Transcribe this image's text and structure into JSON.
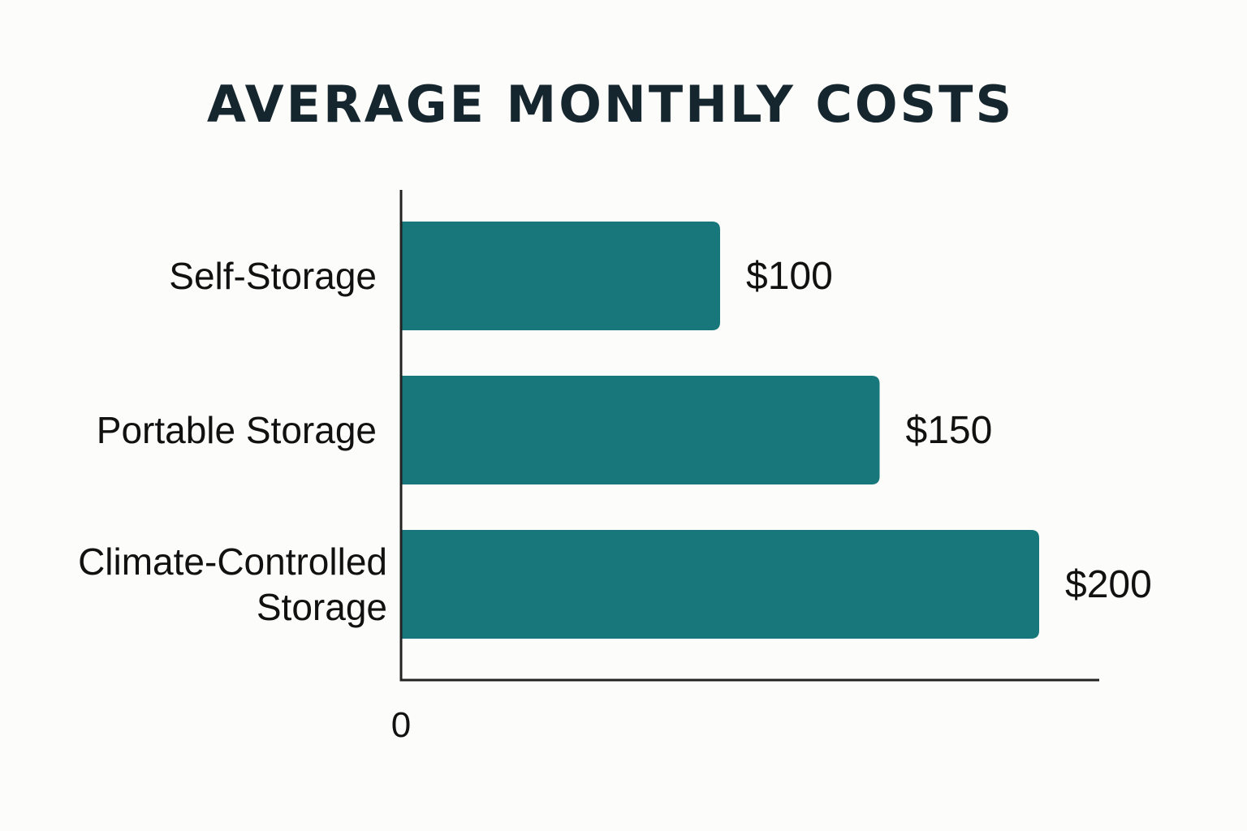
{
  "chart_data": {
    "type": "bar",
    "orientation": "horizontal",
    "title": "AVERAGE MONTHLY COSTS",
    "xlabel": "",
    "ylabel": "",
    "categories": [
      [
        "Self-Storage"
      ],
      [
        "Portable Storage"
      ],
      [
        "Climate-Controlled",
        "Storage"
      ]
    ],
    "values": [
      100,
      150,
      200
    ],
    "value_labels": [
      "$100",
      "$150",
      "$200"
    ],
    "x_tick_labels": [
      "0"
    ],
    "bar_color": "#18777a",
    "axis_color": "#222222",
    "grid": false,
    "legend": "none"
  }
}
